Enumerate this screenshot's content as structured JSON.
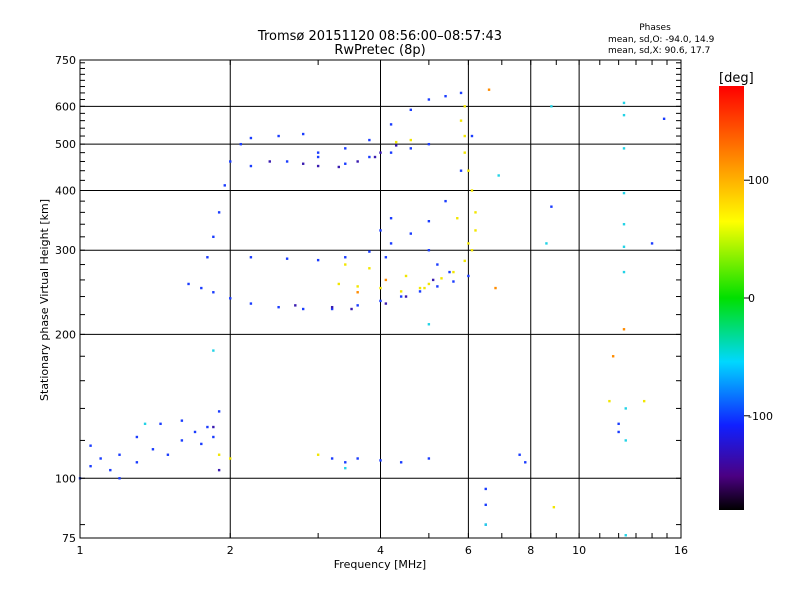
{
  "chart_data": {
    "type": "scatter",
    "title": "Tromsø 20151120 08:56:00–08:57:43",
    "subtitle": "RwPretec (8p)",
    "xlabel": "Frequency [MHz]",
    "ylabel": "Stationary phase Virtual Height [km]",
    "x_scale": "log",
    "y_scale": "log",
    "xlim": [
      1,
      16
    ],
    "ylim": [
      75,
      750
    ],
    "x_ticks": [
      "1",
      "2",
      "4",
      "6",
      "8",
      "10",
      "16"
    ],
    "y_ticks": [
      "75",
      "100",
      "200",
      "300",
      "400",
      "500",
      "600",
      "750"
    ],
    "grid": true,
    "info": {
      "heading": "Phases",
      "line_o": "mean, sd,O: -94.0, 14.9",
      "line_x": "mean, sd,X:  90.6, 17.7"
    },
    "colorbar": {
      "label": "[deg]",
      "range": [
        -180,
        180
      ],
      "ticks": [
        "100",
        "0",
        "-100"
      ]
    },
    "point_colors": {
      "o_trace": "#1a3cff",
      "o_dark": "#3a1bb0",
      "x_trace": "#f2e600",
      "noise_cyan": "#22d3e6"
    },
    "series": [
      {
        "name": "o_trace",
        "color": "#1a3cff",
        "points": [
          [
            1.0,
            100
          ],
          [
            1.05,
            106
          ],
          [
            1.1,
            110
          ],
          [
            1.15,
            104
          ],
          [
            1.2,
            112
          ],
          [
            1.3,
            108
          ],
          [
            1.4,
            115
          ],
          [
            1.5,
            112
          ],
          [
            1.6,
            120
          ],
          [
            1.7,
            125
          ],
          [
            1.8,
            128
          ],
          [
            1.05,
            117
          ],
          [
            1.2,
            100
          ],
          [
            1.3,
            122
          ],
          [
            1.45,
            130
          ],
          [
            1.6,
            132
          ],
          [
            1.75,
            118
          ],
          [
            1.85,
            122
          ],
          [
            1.9,
            138
          ],
          [
            1.65,
            255
          ],
          [
            1.75,
            250
          ],
          [
            1.85,
            245
          ],
          [
            2.0,
            238
          ],
          [
            2.2,
            232
          ],
          [
            2.5,
            228
          ],
          [
            2.8,
            226
          ],
          [
            3.2,
            226
          ],
          [
            3.6,
            230
          ],
          [
            4.0,
            235
          ],
          [
            4.4,
            240
          ],
          [
            4.8,
            246
          ],
          [
            5.2,
            252
          ],
          [
            5.6,
            258
          ],
          [
            6.0,
            265
          ],
          [
            1.8,
            290
          ],
          [
            1.85,
            320
          ],
          [
            1.9,
            360
          ],
          [
            1.95,
            410
          ],
          [
            2.0,
            460
          ],
          [
            2.1,
            500
          ],
          [
            2.2,
            515
          ],
          [
            2.5,
            520
          ],
          [
            2.8,
            525
          ],
          [
            2.2,
            290
          ],
          [
            2.6,
            288
          ],
          [
            3.0,
            286
          ],
          [
            3.4,
            290
          ],
          [
            3.8,
            298
          ],
          [
            4.2,
            310
          ],
          [
            4.6,
            325
          ],
          [
            5.0,
            345
          ],
          [
            5.4,
            380
          ],
          [
            5.8,
            440
          ],
          [
            6.1,
            520
          ],
          [
            3.0,
            480
          ],
          [
            3.4,
            490
          ],
          [
            3.8,
            510
          ],
          [
            4.2,
            550
          ],
          [
            4.6,
            590
          ],
          [
            5.0,
            620
          ],
          [
            5.4,
            630
          ],
          [
            5.8,
            640
          ],
          [
            2.2,
            450
          ],
          [
            2.6,
            460
          ],
          [
            3.0,
            470
          ],
          [
            3.4,
            455
          ],
          [
            3.8,
            470
          ],
          [
            4.2,
            480
          ],
          [
            4.6,
            490
          ],
          [
            5.0,
            500
          ],
          [
            4.0,
            330
          ],
          [
            4.1,
            290
          ],
          [
            4.2,
            350
          ],
          [
            5.0,
            300
          ],
          [
            5.2,
            280
          ],
          [
            5.5,
            270
          ],
          [
            3.2,
            110
          ],
          [
            3.4,
            108
          ],
          [
            3.6,
            110
          ],
          [
            4.0,
            109
          ],
          [
            4.4,
            108
          ],
          [
            5.0,
            110
          ],
          [
            7.6,
            112
          ],
          [
            7.8,
            108
          ],
          [
            8.8,
            370
          ],
          [
            6.5,
            95
          ],
          [
            6.5,
            88
          ],
          [
            6.5,
            80
          ],
          [
            12,
            130
          ],
          [
            12,
            125
          ],
          [
            14,
            310
          ],
          [
            14.8,
            565
          ]
        ]
      },
      {
        "name": "o_dark",
        "color": "#3a1bb0",
        "points": [
          [
            2.4,
            460
          ],
          [
            2.8,
            455
          ],
          [
            3.0,
            450
          ],
          [
            3.3,
            448
          ],
          [
            3.6,
            460
          ],
          [
            4.0,
            480
          ],
          [
            3.2,
            228
          ],
          [
            3.5,
            226
          ],
          [
            4.1,
            232
          ],
          [
            4.5,
            240
          ],
          [
            2.7,
            230
          ],
          [
            3.9,
            470
          ],
          [
            4.3,
            497
          ],
          [
            5.1,
            260
          ],
          [
            1.85,
            128
          ],
          [
            1.9,
            104
          ]
        ]
      },
      {
        "name": "x_trace",
        "color": "#f2e600",
        "points": [
          [
            3.3,
            255
          ],
          [
            3.6,
            252
          ],
          [
            4.0,
            250
          ],
          [
            4.4,
            246
          ],
          [
            4.8,
            250
          ],
          [
            5.0,
            255
          ],
          [
            5.3,
            262
          ],
          [
            5.6,
            270
          ],
          [
            5.9,
            285
          ],
          [
            6.1,
            300
          ],
          [
            6.2,
            330
          ],
          [
            6.2,
            360
          ],
          [
            6.1,
            400
          ],
          [
            6.0,
            440
          ],
          [
            5.9,
            480
          ],
          [
            5.9,
            520
          ],
          [
            5.8,
            560
          ],
          [
            5.9,
            600
          ],
          [
            3.4,
            280
          ],
          [
            3.8,
            275
          ],
          [
            4.5,
            265
          ],
          [
            4.9,
            250
          ],
          [
            6.0,
            310
          ],
          [
            5.7,
            350
          ],
          [
            4.6,
            510
          ],
          [
            4.3,
            505
          ],
          [
            1.9,
            112
          ],
          [
            2.0,
            110
          ],
          [
            3.0,
            112
          ],
          [
            8.9,
            87
          ],
          [
            11.5,
            145
          ],
          [
            13.5,
            145
          ]
        ]
      },
      {
        "name": "noise_cyan",
        "color": "#22d3e6",
        "points": [
          [
            1.35,
            130
          ],
          [
            1.85,
            185
          ],
          [
            3.4,
            105
          ],
          [
            5.0,
            210
          ],
          [
            6.9,
            430
          ],
          [
            8.8,
            600
          ],
          [
            12.3,
            610
          ],
          [
            12.3,
            575
          ],
          [
            12.3,
            490
          ],
          [
            12.3,
            395
          ],
          [
            12.3,
            340
          ],
          [
            12.3,
            305
          ],
          [
            12.3,
            270
          ],
          [
            12.4,
            140
          ],
          [
            12.4,
            120
          ],
          [
            12.4,
            76
          ],
          [
            8.6,
            310
          ],
          [
            6.5,
            80
          ]
        ]
      },
      {
        "name": "misc_warm",
        "color": "#ff8c00",
        "points": [
          [
            6.6,
            650
          ],
          [
            6.8,
            250
          ],
          [
            4.1,
            260
          ],
          [
            3.6,
            245
          ],
          [
            12.3,
            205
          ],
          [
            11.7,
            180
          ]
        ]
      }
    ]
  }
}
